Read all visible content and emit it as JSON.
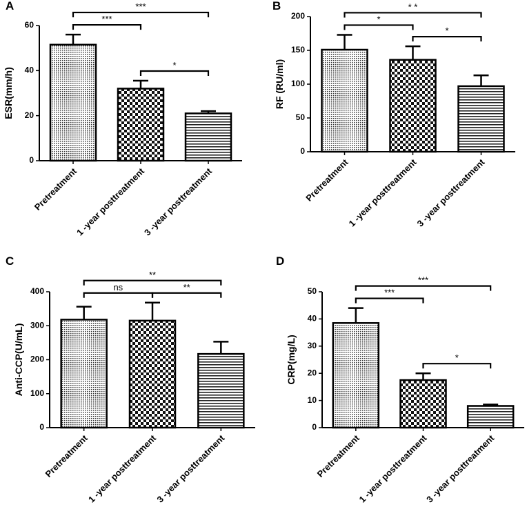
{
  "chart_data": [
    {
      "type": "bar",
      "label": "A",
      "y_label": "ESR(mm/h)",
      "categories": [
        "Pretreatment",
        "1 -year posttreatment",
        "3 -year posttreatment"
      ],
      "values": [
        51.5,
        32,
        21
      ],
      "errors": [
        4.5,
        3.5,
        1
      ],
      "color": "#000000",
      "ylim": [
        0,
        60
      ],
      "yticks": [
        0,
        20,
        40,
        60
      ],
      "comparisons": [
        {
          "groups": [
            "Pretreatment",
            "3 -year posttreatment"
          ],
          "label": "***"
        },
        {
          "groups": [
            "Pretreatment",
            "1 -year posttreatment"
          ],
          "label": "***"
        },
        {
          "groups": [
            "1 -year posttreatment",
            "3 -year posttreatment"
          ],
          "label": "*"
        }
      ]
    },
    {
      "type": "bar",
      "label": "B",
      "y_label": "RF (RU/ml)",
      "categories": [
        "Pretreatment",
        "1 -year posttreatment",
        "3 -year posttreatment"
      ],
      "values": [
        151,
        136,
        97
      ],
      "errors": [
        22,
        20,
        16
      ],
      "color": "#000000",
      "ylim": [
        0,
        200
      ],
      "yticks": [
        0,
        50,
        100,
        150,
        200
      ],
      "comparisons": [
        {
          "groups": [
            "Pretreatment",
            "3 -year posttreatment"
          ],
          "label": "* *"
        },
        {
          "groups": [
            "Pretreatment",
            "1 -year posttreatment"
          ],
          "label": "*"
        },
        {
          "groups": [
            "1 -year posttreatment",
            "3 -year posttreatment"
          ],
          "label": "*"
        }
      ]
    },
    {
      "type": "bar",
      "label": "C",
      "y_label": "Anti-CCP(U/mL)",
      "categories": [
        "Pretreatment",
        "1 -year posttreatment",
        "3 -year posttreatment"
      ],
      "values": [
        318,
        315,
        217
      ],
      "errors": [
        38,
        53,
        36
      ],
      "color": "#000000",
      "ylim": [
        0,
        400
      ],
      "yticks": [
        0,
        100,
        200,
        300,
        400
      ],
      "comparisons": [
        {
          "groups": [
            "Pretreatment",
            "3 -year posttreatment"
          ],
          "label": "**"
        },
        {
          "groups": [
            "Pretreatment",
            "1 -year posttreatment"
          ],
          "label": "ns"
        },
        {
          "groups": [
            "1 -year posttreatment",
            "3 -year posttreatment"
          ],
          "label": "**"
        }
      ]
    },
    {
      "type": "bar",
      "label": "D",
      "y_label": "CRP(mg/L)",
      "categories": [
        "Pretreatment",
        "1 -year posttreatment",
        "3 -year posttreatment"
      ],
      "values": [
        38.5,
        17.5,
        8
      ],
      "errors": [
        5.5,
        2.5,
        0.5
      ],
      "color": "#000000",
      "ylim": [
        0,
        50
      ],
      "yticks": [
        0,
        10,
        20,
        30,
        40,
        50
      ],
      "comparisons": [
        {
          "groups": [
            "Pretreatment",
            "3 -year posttreatment"
          ],
          "label": "***"
        },
        {
          "groups": [
            "Pretreatment",
            "1 -year posttreatment"
          ],
          "label": "***"
        },
        {
          "groups": [
            "1 -year posttreatment",
            "3 -year posttreatment"
          ],
          "label": "*"
        }
      ]
    }
  ]
}
